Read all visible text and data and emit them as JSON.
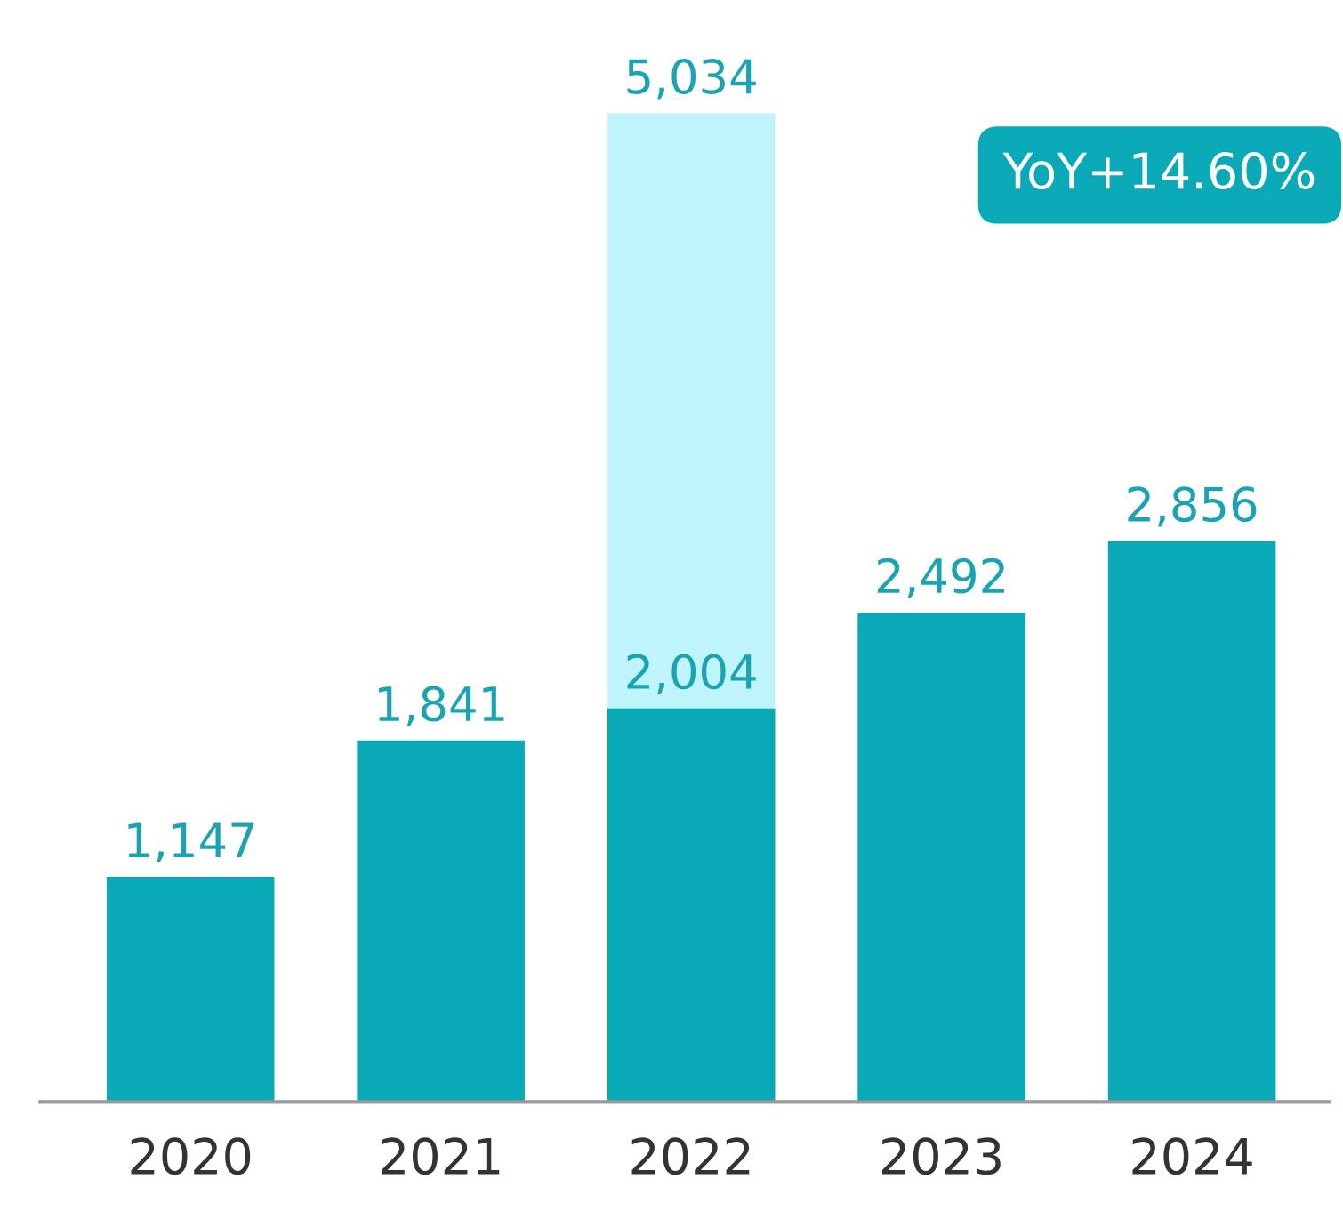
{
  "chart_data": {
    "type": "bar",
    "categories": [
      "2020",
      "2021",
      "2022",
      "2023",
      "2024"
    ],
    "series": [
      {
        "color": "#bdf5fb",
        "values": [
          null,
          null,
          5034,
          null,
          null
        ],
        "value_labels": [
          null,
          null,
          "5,034",
          null,
          null
        ]
      },
      {
        "color": "#0aa9b8",
        "values": [
          1147,
          1841,
          2004,
          2492,
          2856
        ],
        "value_labels": [
          "1,147",
          "1,841",
          "2,004",
          "2,492",
          "2,856"
        ]
      }
    ],
    "annotations": [
      "YoY+14.60%"
    ],
    "tick_labels": "x",
    "grid": false,
    "legend": false
  }
}
